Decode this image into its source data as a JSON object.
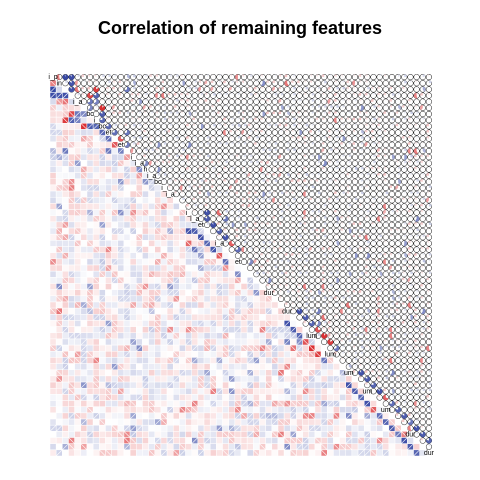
{
  "chart_data": {
    "type": "heatmap",
    "title": "Correlation of remaining features",
    "variable_count": 62,
    "lower_panel": "shade",
    "upper_panel": "pie",
    "value_range": [
      -1,
      1
    ],
    "colors": {
      "negative": "#d7191c",
      "positive": "#2c3e9f",
      "neutral": "#ffffff",
      "grid": "#ffffff"
    },
    "diagonal_labels": [
      "i_p",
      "in",
      "",
      "",
      "i_a",
      "",
      "bc",
      "i_",
      "bc",
      "et",
      "",
      "et",
      "",
      "i_",
      "i_a",
      "h",
      "i_a",
      "bc",
      "i_",
      "i_a",
      "",
      "",
      "i_",
      "i_a",
      "et",
      "",
      "",
      "i_a",
      "",
      "",
      "et",
      "",
      "",
      "",
      "",
      "dur",
      "",
      "",
      "dur",
      "",
      "",
      "",
      "lum",
      "",
      "",
      "lum",
      "",
      "",
      "um",
      "",
      "",
      "um",
      "",
      "",
      "um",
      "",
      "",
      "",
      "dur",
      "",
      "",
      "dur"
    ],
    "strong_pairs": [
      {
        "i": 0,
        "j": 2,
        "r": 0.95
      },
      {
        "i": 0,
        "j": 3,
        "r": 0.92
      },
      {
        "i": 1,
        "j": 3,
        "r": 0.88
      },
      {
        "i": 0,
        "j": 1,
        "r": -0.55
      },
      {
        "i": 2,
        "j": 3,
        "r": 0.9
      },
      {
        "i": 2,
        "j": 4,
        "r": -0.6
      },
      {
        "i": 4,
        "j": 6,
        "r": 0.7
      },
      {
        "i": 5,
        "j": 6,
        "r": 0.62
      },
      {
        "i": 6,
        "j": 8,
        "r": 0.85
      },
      {
        "i": 7,
        "j": 8,
        "r": 0.8
      },
      {
        "i": 8,
        "j": 9,
        "r": 0.78
      },
      {
        "i": 9,
        "j": 10,
        "r": 0.75
      },
      {
        "i": 10,
        "j": 11,
        "r": -0.72
      },
      {
        "i": 11,
        "j": 12,
        "r": 0.66
      },
      {
        "i": 3,
        "j": 6,
        "r": -0.8
      },
      {
        "i": 3,
        "j": 7,
        "r": 0.82
      },
      {
        "i": 4,
        "j": 7,
        "r": 0.65
      },
      {
        "i": 5,
        "j": 8,
        "r": -0.9
      },
      {
        "i": 2,
        "j": 7,
        "r": -0.85
      },
      {
        "i": 9,
        "j": 12,
        "r": 0.7
      },
      {
        "i": 14,
        "j": 15,
        "r": 0.6
      },
      {
        "i": 15,
        "j": 17,
        "r": 0.55
      },
      {
        "i": 22,
        "j": 25,
        "r": 0.9
      },
      {
        "i": 23,
        "j": 25,
        "r": 0.85
      },
      {
        "i": 24,
        "j": 26,
        "r": 0.92
      },
      {
        "i": 25,
        "j": 27,
        "r": 0.8
      },
      {
        "i": 26,
        "j": 28,
        "r": 0.88
      },
      {
        "i": 27,
        "j": 29,
        "r": -0.7
      },
      {
        "i": 28,
        "j": 30,
        "r": 0.75
      },
      {
        "i": 22,
        "j": 27,
        "r": -0.65
      },
      {
        "i": 23,
        "j": 28,
        "r": 0.7
      },
      {
        "i": 30,
        "j": 32,
        "r": 0.6
      },
      {
        "i": 38,
        "j": 40,
        "r": 0.9
      },
      {
        "i": 39,
        "j": 41,
        "r": 0.85
      },
      {
        "i": 40,
        "j": 42,
        "r": 0.8
      },
      {
        "i": 41,
        "j": 43,
        "r": -0.75
      },
      {
        "i": 42,
        "j": 44,
        "r": -0.9
      },
      {
        "i": 43,
        "j": 45,
        "r": -0.85
      },
      {
        "i": 44,
        "j": 46,
        "r": 0.7
      },
      {
        "i": 38,
        "j": 43,
        "r": 0.65
      },
      {
        "i": 39,
        "j": 44,
        "r": -0.6
      },
      {
        "i": 48,
        "j": 50,
        "r": 0.9
      },
      {
        "i": 49,
        "j": 51,
        "r": 0.85
      },
      {
        "i": 50,
        "j": 52,
        "r": 0.8
      },
      {
        "i": 51,
        "j": 53,
        "r": 0.9
      },
      {
        "i": 52,
        "j": 54,
        "r": -0.7
      },
      {
        "i": 53,
        "j": 55,
        "r": 0.75
      },
      {
        "i": 54,
        "j": 56,
        "r": 0.8
      },
      {
        "i": 55,
        "j": 57,
        "r": 0.85
      },
      {
        "i": 56,
        "j": 58,
        "r": 0.7
      },
      {
        "i": 57,
        "j": 59,
        "r": 0.9
      },
      {
        "i": 58,
        "j": 60,
        "r": 0.85
      },
      {
        "i": 59,
        "j": 61,
        "r": 0.8
      },
      {
        "i": 48,
        "j": 55,
        "r": 0.6
      },
      {
        "i": 2,
        "j": 12,
        "r": 0.7
      },
      {
        "i": 3,
        "j": 18,
        "r": -0.55
      },
      {
        "i": 6,
        "j": 34,
        "r": 0.5
      },
      {
        "i": 0,
        "j": 30,
        "r": -0.5
      },
      {
        "i": 5,
        "j": 50,
        "r": 0.55
      },
      {
        "i": 12,
        "j": 58,
        "r": -0.5
      },
      {
        "i": 9,
        "j": 40,
        "r": 0.5
      },
      {
        "i": 20,
        "j": 36,
        "r": -0.45
      }
    ],
    "seed": 7
  }
}
